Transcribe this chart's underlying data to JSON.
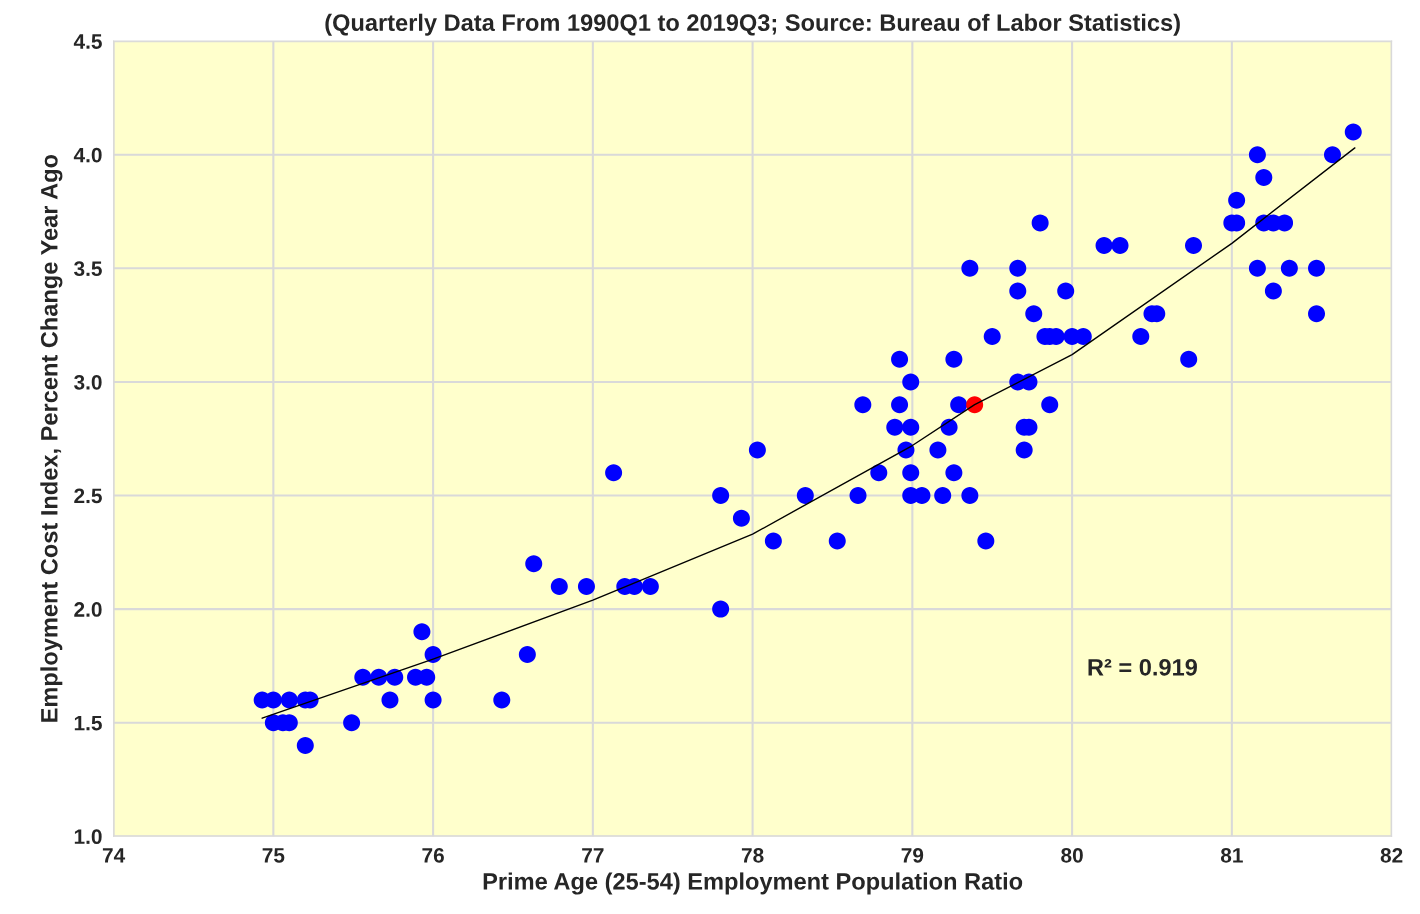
{
  "chart_data": {
    "type": "scatter",
    "subtitle": "(Quarterly Data From 1990Q1 to 2019Q3; Source: Bureau of Labor Statistics)",
    "xlabel": "Prime Age (25-54) Employment Population Ratio",
    "ylabel": "Employment Cost Index, Percent Change Year Ago",
    "xlim": [
      74,
      82
    ],
    "xticks": [
      74,
      75,
      76,
      77,
      78,
      79,
      80,
      81,
      82
    ],
    "ylim": [
      1.0,
      4.5
    ],
    "yticks": [
      {
        "value": 1.0,
        "label": "1.0"
      },
      {
        "value": 1.5,
        "label": "1.5"
      },
      {
        "value": 2.0,
        "label": "2.0"
      },
      {
        "value": 2.5,
        "label": "2.5"
      },
      {
        "value": 3.0,
        "label": "3.0"
      },
      {
        "value": 3.5,
        "label": "3.5"
      },
      {
        "value": 4.0,
        "label": "4.0"
      },
      {
        "value": 4.5,
        "label": "4.5"
      }
    ],
    "grid": true,
    "marker": "circle",
    "annotations": [
      "R² = 0.919"
    ],
    "series": [
      {
        "color": "#0000ff",
        "x": [
          74.93,
          75.0,
          75.1,
          75.2,
          75.23,
          75.0,
          75.06,
          75.1,
          75.2,
          75.49,
          75.56,
          75.66,
          75.76,
          75.73,
          75.89,
          75.96,
          75.93,
          76.0,
          76.0,
          76.43,
          76.59,
          76.63,
          76.79,
          76.96,
          77.13,
          77.2,
          77.26,
          77.36,
          77.8,
          77.8,
          77.93,
          78.03,
          78.13,
          78.33,
          78.53,
          78.66,
          78.69,
          78.79,
          78.89,
          78.92,
          78.92,
          78.96,
          78.99,
          78.99,
          78.99,
          78.99,
          79.06,
          79.16,
          79.19,
          79.23,
          79.26,
          79.26,
          79.29,
          79.36,
          79.36,
          79.46,
          79.5,
          79.66,
          79.66,
          79.66,
          79.7,
          79.73,
          79.7,
          79.73,
          79.76,
          79.8,
          79.83,
          79.86,
          79.9,
          79.86,
          79.96,
          80.0,
          80.07,
          80.2,
          80.3,
          80.43,
          80.5,
          80.53,
          80.73,
          80.76,
          81.0,
          81.03,
          81.03,
          81.16,
          81.16,
          81.2,
          81.2,
          81.26,
          81.33,
          81.26,
          81.36,
          81.53,
          81.53,
          81.63,
          81.76
        ],
        "values": [
          1.6,
          1.6,
          1.6,
          1.6,
          1.6,
          1.5,
          1.5,
          1.5,
          1.4,
          1.5,
          1.7,
          1.7,
          1.7,
          1.6,
          1.7,
          1.7,
          1.9,
          1.8,
          1.6,
          1.6,
          1.8,
          2.2,
          2.1,
          2.1,
          2.6,
          2.1,
          2.1,
          2.1,
          2.0,
          2.5,
          2.4,
          2.7,
          2.3,
          2.5,
          2.3,
          2.5,
          2.9,
          2.6,
          2.8,
          3.1,
          2.9,
          2.7,
          3.0,
          2.8,
          2.6,
          2.5,
          2.5,
          2.7,
          2.5,
          2.8,
          2.6,
          3.1,
          2.9,
          3.5,
          2.5,
          2.3,
          3.2,
          3.5,
          3.4,
          3.0,
          2.8,
          2.8,
          2.7,
          3.0,
          3.3,
          3.7,
          3.2,
          3.2,
          3.2,
          2.9,
          3.4,
          3.2,
          3.2,
          3.6,
          3.6,
          3.2,
          3.3,
          3.3,
          3.1,
          3.6,
          3.7,
          3.7,
          3.8,
          4.0,
          3.5,
          3.9,
          3.7,
          3.7,
          3.7,
          3.4,
          3.5,
          3.5,
          3.3,
          4.0,
          4.1
        ]
      },
      {
        "color": "#ff0000",
        "x": [
          79.39
        ],
        "values": [
          2.9
        ]
      },
      {
        "type": "line",
        "color": "#000000",
        "marker": "none",
        "x": [
          74.93,
          76,
          77,
          78,
          79,
          79.39,
          80,
          81,
          81.77
        ],
        "values": [
          1.52,
          1.78,
          2.04,
          2.33,
          2.72,
          2.9,
          3.12,
          3.61,
          4.03
        ]
      }
    ]
  }
}
